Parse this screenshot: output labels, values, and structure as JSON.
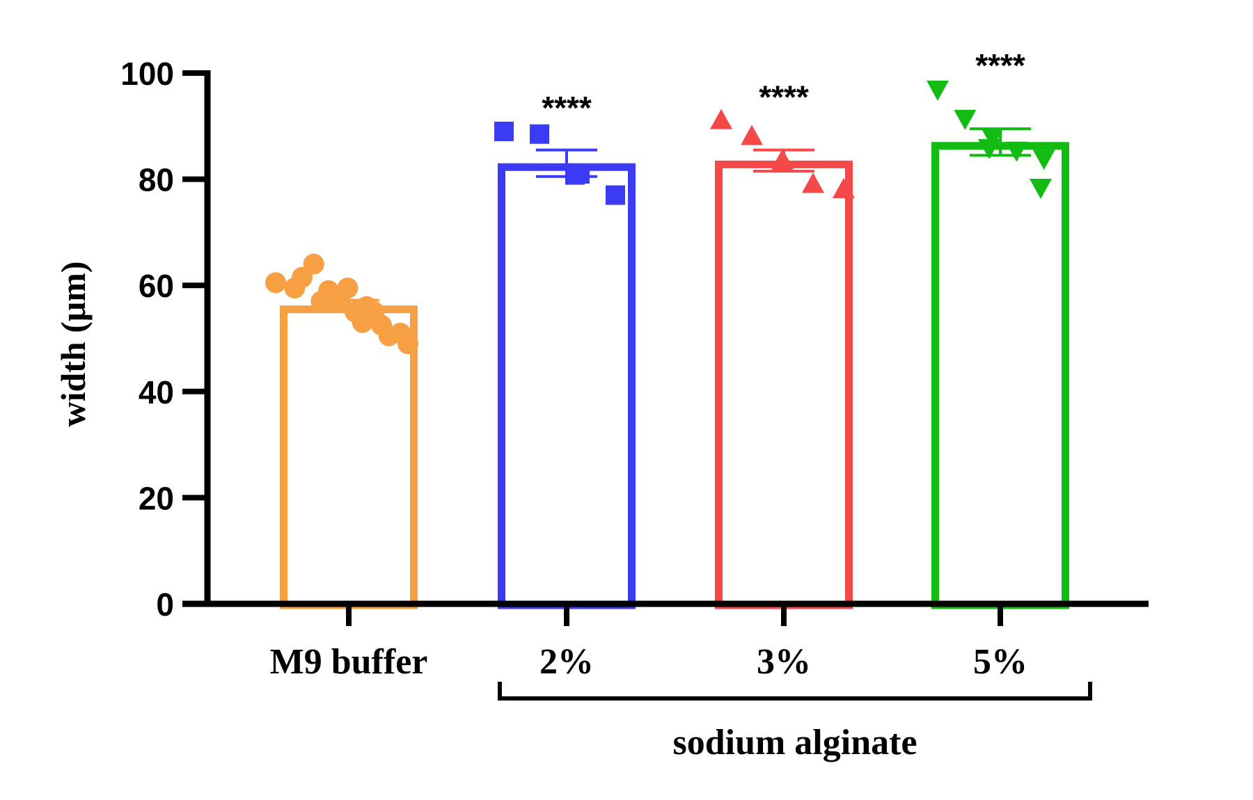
{
  "chart_data": {
    "type": "bar",
    "ylabel": "width (μm)",
    "ylim": [
      0,
      100
    ],
    "yticks": [
      0,
      20,
      40,
      60,
      80,
      100
    ],
    "categories": [
      "M9 buffer",
      "2%",
      "3%",
      "5%"
    ],
    "group_bracket": {
      "label": "sodium alginate",
      "from": "2%",
      "to": "5%"
    },
    "grid": false,
    "legend": "none",
    "bars": [
      {
        "category": "M9 buffer",
        "mean": 56.2,
        "sem": 1.0,
        "color": "#F7A043",
        "marker": "circle",
        "significance": "",
        "points": [
          60.5,
          59.5,
          64.0,
          61.5,
          57.0,
          57.0,
          59.0,
          59.5,
          56.0,
          55.0,
          55.0,
          53.0,
          52.5,
          51.0,
          50.5,
          49.0
        ]
      },
      {
        "category": "2%",
        "mean": 83.0,
        "sem": 2.5,
        "color": "#3B3BF5",
        "marker": "square",
        "significance": "****",
        "points": [
          89.0,
          88.5,
          80.8,
          81.0,
          77.0
        ]
      },
      {
        "category": "3%",
        "mean": 83.5,
        "sem": 2.0,
        "color": "#F54848",
        "marker": "triangle-up",
        "significance": "****",
        "points": [
          91.0,
          88.0,
          83.5,
          83.0,
          79.0,
          78.0
        ]
      },
      {
        "category": "5%",
        "mean": 87.0,
        "sem": 2.5,
        "color": "#12BC12",
        "marker": "triangle-down",
        "significance": "****",
        "points": [
          97.0,
          91.5,
          88.0,
          86.0,
          85.5,
          84.0,
          78.5
        ]
      }
    ]
  }
}
